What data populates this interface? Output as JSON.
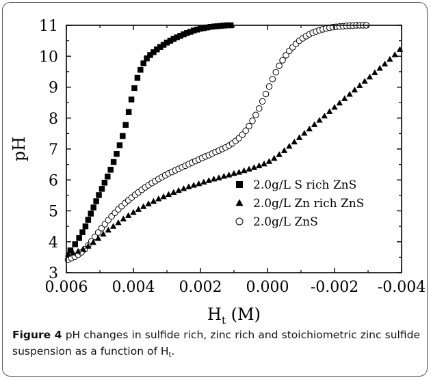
{
  "caption": {
    "label": "Figure 4",
    "text": "pH changes in sulfide rich, zinc rich and stoichiometric zinc sulfide suspension as a function of H",
    "subscript": "t",
    "end": "."
  },
  "chart_data": {
    "type": "scatter",
    "xlabel": "H",
    "xlabel_sub": "t",
    "xlabel_unit": " (M)",
    "ylabel": "pH",
    "xlim": [
      0.006,
      -0.004
    ],
    "ylim": [
      3,
      11
    ],
    "x_ticks": [
      "0.006",
      "0.004",
      "0.002",
      "0.000",
      "-0.002",
      "-0.004"
    ],
    "y_ticks": [
      "3",
      "4",
      "5",
      "6",
      "7",
      "8",
      "9",
      "10",
      "11"
    ],
    "grid": false,
    "legend_position": "center-right",
    "series": [
      {
        "name": "2.0g/L S rich ZnS",
        "marker": "filled-square",
        "x": [
          0.00588,
          0.00574,
          0.00562,
          0.00552,
          0.00543,
          0.00535,
          0.00527,
          0.00519,
          0.00511,
          0.00503,
          0.00494,
          0.00486,
          0.00477,
          0.00468,
          0.00459,
          0.0045,
          0.00441,
          0.00432,
          0.00423,
          0.00414,
          0.00406,
          0.00397,
          0.00388,
          0.00379,
          0.0037,
          0.0036,
          0.0035,
          0.0034,
          0.0033,
          0.0032,
          0.0031,
          0.003,
          0.0029,
          0.0028,
          0.0027,
          0.0026,
          0.0025,
          0.0024,
          0.0023,
          0.0022,
          0.0021,
          0.002,
          0.0019,
          0.0018,
          0.0017,
          0.0016,
          0.0015,
          0.0014,
          0.0013,
          0.0012,
          0.0011
        ],
        "y": [
          3.72,
          3.92,
          4.12,
          4.31,
          4.5,
          4.71,
          4.91,
          5.11,
          5.31,
          5.51,
          5.71,
          5.91,
          6.11,
          6.33,
          6.58,
          6.84,
          7.12,
          7.42,
          7.78,
          8.2,
          8.6,
          8.97,
          9.3,
          9.56,
          9.77,
          9.93,
          10.04,
          10.13,
          10.22,
          10.3,
          10.37,
          10.44,
          10.5,
          10.56,
          10.61,
          10.66,
          10.71,
          10.75,
          10.79,
          10.83,
          10.86,
          10.89,
          10.91,
          10.93,
          10.95,
          10.96,
          10.97,
          10.98,
          10.99,
          11.0,
          11.0
        ]
      },
      {
        "name": "2.0g/L Zn rich ZnS",
        "marker": "filled-triangle",
        "x": [
          0.00595,
          0.0058,
          0.00565,
          0.0055,
          0.00535,
          0.0052,
          0.00505,
          0.0049,
          0.00475,
          0.0046,
          0.00445,
          0.0043,
          0.00415,
          0.004,
          0.00385,
          0.0037,
          0.00355,
          0.0034,
          0.00325,
          0.0031,
          0.00295,
          0.0028,
          0.00265,
          0.0025,
          0.00235,
          0.0022,
          0.00205,
          0.0019,
          0.00175,
          0.0016,
          0.00145,
          0.0013,
          0.00115,
          0.001,
          0.00085,
          0.0007,
          0.00055,
          0.0004,
          0.00025,
          0.0001,
          -5e-05,
          -0.0002,
          -0.00035,
          -0.0005,
          -0.00065,
          -0.0008,
          -0.00095,
          -0.0011,
          -0.00125,
          -0.0014,
          -0.00155,
          -0.0017,
          -0.00185,
          -0.002,
          -0.00215,
          -0.0023,
          -0.00245,
          -0.0026,
          -0.00275,
          -0.0029,
          -0.00305,
          -0.0032,
          -0.00335,
          -0.0035,
          -0.00365,
          -0.0038,
          -0.00395
        ],
        "y": [
          3.6,
          3.64,
          3.69,
          3.76,
          3.86,
          3.98,
          4.11,
          4.25,
          4.38,
          4.5,
          4.62,
          4.74,
          4.85,
          4.95,
          5.05,
          5.14,
          5.23,
          5.31,
          5.39,
          5.46,
          5.53,
          5.6,
          5.66,
          5.72,
          5.78,
          5.83,
          5.88,
          5.93,
          5.98,
          6.03,
          6.07,
          6.12,
          6.16,
          6.21,
          6.25,
          6.3,
          6.35,
          6.4,
          6.46,
          6.52,
          6.6,
          6.7,
          6.82,
          6.95,
          7.09,
          7.23,
          7.37,
          7.51,
          7.65,
          7.79,
          7.93,
          8.07,
          8.21,
          8.35,
          8.49,
          8.63,
          8.77,
          8.91,
          9.05,
          9.19,
          9.33,
          9.47,
          9.61,
          9.75,
          9.9,
          10.05,
          10.22
        ]
      },
      {
        "name": "2.0g/L ZnS",
        "marker": "open-circle",
        "x": [
          0.00595,
          0.00585,
          0.00575,
          0.00565,
          0.00555,
          0.00545,
          0.00535,
          0.00525,
          0.00515,
          0.00505,
          0.00495,
          0.00485,
          0.00475,
          0.00465,
          0.00455,
          0.00445,
          0.00435,
          0.00425,
          0.00415,
          0.00405,
          0.00395,
          0.00385,
          0.00375,
          0.00365,
          0.00355,
          0.00345,
          0.00335,
          0.00325,
          0.00315,
          0.00305,
          0.00295,
          0.00285,
          0.00275,
          0.00265,
          0.00255,
          0.00245,
          0.00235,
          0.00225,
          0.00215,
          0.00205,
          0.00195,
          0.00185,
          0.00175,
          0.00165,
          0.00155,
          0.00145,
          0.00135,
          0.00125,
          0.00115,
          0.00105,
          0.00095,
          0.00085,
          0.00075,
          0.00065,
          0.00055,
          0.00045,
          0.00035,
          0.00025,
          0.00015,
          5e-05,
          -5e-05,
          -0.00015,
          -0.00025,
          -0.00035,
          -0.00045,
          -0.00055,
          -0.00065,
          -0.00075,
          -0.00085,
          -0.00095,
          -0.00105,
          -0.00115,
          -0.00125,
          -0.00135,
          -0.00145,
          -0.00155,
          -0.00165,
          -0.00175,
          -0.00185,
          -0.00195,
          -0.00205,
          -0.00215,
          -0.00225,
          -0.00235,
          -0.00245,
          -0.00255,
          -0.00265,
          -0.00275,
          -0.00285,
          -0.00295
        ],
        "y": [
          3.42,
          3.47,
          3.52,
          3.58,
          3.66,
          3.76,
          3.88,
          4.02,
          4.16,
          4.3,
          4.44,
          4.57,
          4.7,
          4.82,
          4.94,
          5.05,
          5.15,
          5.25,
          5.34,
          5.43,
          5.52,
          5.6,
          5.68,
          5.76,
          5.83,
          5.9,
          5.96,
          6.03,
          6.09,
          6.15,
          6.21,
          6.26,
          6.31,
          6.36,
          6.41,
          6.46,
          6.51,
          6.56,
          6.61,
          6.66,
          6.71,
          6.76,
          6.8,
          6.85,
          6.9,
          6.95,
          7.0,
          7.05,
          7.11,
          7.18,
          7.26,
          7.35,
          7.46,
          7.59,
          7.74,
          7.91,
          8.1,
          8.31,
          8.54,
          8.78,
          9.02,
          9.26,
          9.48,
          9.69,
          9.87,
          10.03,
          10.17,
          10.29,
          10.4,
          10.5,
          10.58,
          10.65,
          10.71,
          10.76,
          10.8,
          10.84,
          10.87,
          10.9,
          10.92,
          10.94,
          10.95,
          10.96,
          10.97,
          10.98,
          10.99,
          10.99,
          11.0,
          11.0,
          11.0,
          11.0
        ]
      }
    ]
  }
}
